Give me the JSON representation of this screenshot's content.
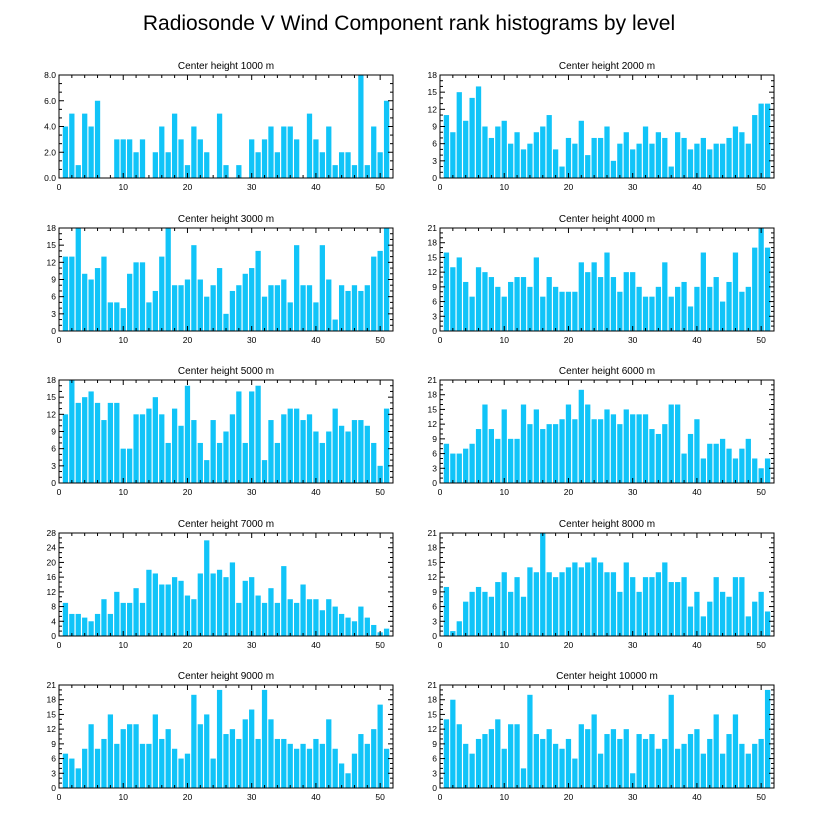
{
  "figure": {
    "title": "Radiosonde V Wind Component rank histograms by level",
    "bar_color": "#11c4f8"
  },
  "chart_data": [
    {
      "type": "bar",
      "title": "Center height 1000 m",
      "ylim": [
        0,
        8
      ],
      "xlim": [
        0,
        52
      ],
      "yticks": [
        0,
        2,
        4,
        6,
        8
      ],
      "ytick_labels": [
        "0.0",
        "2.0",
        "4.0",
        "6.0",
        "8.0"
      ],
      "xticks": [
        0,
        10,
        20,
        30,
        40,
        50
      ],
      "xtick_labels": [
        "0",
        "10",
        "20",
        "30",
        "40",
        "50"
      ],
      "categories": [
        1,
        2,
        3,
        4,
        5,
        6,
        7,
        8,
        9,
        10,
        11,
        12,
        13,
        14,
        15,
        16,
        17,
        18,
        19,
        20,
        21,
        22,
        23,
        24,
        25,
        26,
        27,
        28,
        29,
        30,
        31,
        32,
        33,
        34,
        35,
        36,
        37,
        38,
        39,
        40,
        41,
        42,
        43,
        44,
        45,
        46,
        47,
        48,
        49,
        50,
        51
      ],
      "values": [
        4,
        5,
        1,
        5,
        4,
        6,
        0,
        0,
        3,
        3,
        3,
        2,
        3,
        0,
        2,
        4,
        2,
        5,
        3,
        1,
        4,
        3,
        2,
        0,
        5,
        1,
        0,
        1,
        0,
        3,
        2,
        3,
        4,
        2,
        4,
        4,
        3,
        0,
        5,
        3,
        2,
        4,
        1,
        2,
        2,
        1,
        8,
        1,
        4,
        2,
        6
      ]
    },
    {
      "type": "bar",
      "title": "Center height 2000 m",
      "ylim": [
        0,
        18
      ],
      "xlim": [
        0,
        52
      ],
      "yticks": [
        0,
        3,
        6,
        9,
        12,
        15,
        18
      ],
      "ytick_labels": [
        "0",
        "3",
        "6",
        "9",
        "12",
        "15",
        "18"
      ],
      "xticks": [
        0,
        10,
        20,
        30,
        40,
        50
      ],
      "xtick_labels": [
        "0",
        "10",
        "20",
        "30",
        "40",
        "50"
      ],
      "categories": [
        1,
        2,
        3,
        4,
        5,
        6,
        7,
        8,
        9,
        10,
        11,
        12,
        13,
        14,
        15,
        16,
        17,
        18,
        19,
        20,
        21,
        22,
        23,
        24,
        25,
        26,
        27,
        28,
        29,
        30,
        31,
        32,
        33,
        34,
        35,
        36,
        37,
        38,
        39,
        40,
        41,
        42,
        43,
        44,
        45,
        46,
        47,
        48,
        49,
        50,
        51
      ],
      "values": [
        11,
        8,
        15,
        10,
        14,
        16,
        9,
        7,
        9,
        10,
        6,
        8,
        5,
        6,
        8,
        9,
        11,
        5,
        2,
        7,
        6,
        10,
        4,
        7,
        7,
        9,
        3,
        6,
        8,
        5,
        6,
        9,
        6,
        8,
        7,
        2,
        8,
        7,
        5,
        6,
        7,
        5,
        6,
        6,
        7,
        9,
        8,
        6,
        11,
        13,
        13
      ]
    },
    {
      "type": "bar",
      "title": "Center height 3000 m",
      "ylim": [
        0,
        18
      ],
      "xlim": [
        0,
        52
      ],
      "yticks": [
        0,
        3,
        6,
        9,
        12,
        15,
        18
      ],
      "ytick_labels": [
        "0",
        "3",
        "6",
        "9",
        "12",
        "15",
        "18"
      ],
      "xticks": [
        0,
        10,
        20,
        30,
        40,
        50
      ],
      "xtick_labels": [
        "0",
        "10",
        "20",
        "30",
        "40",
        "50"
      ],
      "categories": [
        1,
        2,
        3,
        4,
        5,
        6,
        7,
        8,
        9,
        10,
        11,
        12,
        13,
        14,
        15,
        16,
        17,
        18,
        19,
        20,
        21,
        22,
        23,
        24,
        25,
        26,
        27,
        28,
        29,
        30,
        31,
        32,
        33,
        34,
        35,
        36,
        37,
        38,
        39,
        40,
        41,
        42,
        43,
        44,
        45,
        46,
        47,
        48,
        49,
        50,
        51
      ],
      "values": [
        13,
        13,
        18,
        10,
        9,
        11,
        13,
        5,
        5,
        4,
        10,
        12,
        12,
        5,
        7,
        13,
        18,
        8,
        8,
        9,
        15,
        9,
        6,
        8,
        11,
        3,
        7,
        8,
        10,
        11,
        14,
        6,
        8,
        8,
        9,
        5,
        15,
        8,
        8,
        5,
        15,
        9,
        2,
        8,
        7,
        8,
        7,
        8,
        13,
        14,
        18
      ]
    },
    {
      "type": "bar",
      "title": "Center height 4000 m",
      "ylim": [
        0,
        21
      ],
      "xlim": [
        0,
        52
      ],
      "yticks": [
        0,
        3,
        6,
        9,
        12,
        15,
        18,
        21
      ],
      "ytick_labels": [
        "0",
        "3",
        "6",
        "9",
        "12",
        "15",
        "18",
        "21"
      ],
      "xticks": [
        0,
        10,
        20,
        30,
        40,
        50
      ],
      "xtick_labels": [
        "0",
        "10",
        "20",
        "30",
        "40",
        "50"
      ],
      "categories": [
        1,
        2,
        3,
        4,
        5,
        6,
        7,
        8,
        9,
        10,
        11,
        12,
        13,
        14,
        15,
        16,
        17,
        18,
        19,
        20,
        21,
        22,
        23,
        24,
        25,
        26,
        27,
        28,
        29,
        30,
        31,
        32,
        33,
        34,
        35,
        36,
        37,
        38,
        39,
        40,
        41,
        42,
        43,
        44,
        45,
        46,
        47,
        48,
        49,
        50,
        51
      ],
      "values": [
        16,
        13,
        15,
        10,
        7,
        13,
        12,
        11,
        9,
        7,
        10,
        11,
        11,
        9,
        15,
        7,
        11,
        9,
        8,
        8,
        8,
        14,
        12,
        14,
        11,
        16,
        11,
        8,
        12,
        12,
        9,
        7,
        7,
        9,
        14,
        7,
        9,
        10,
        5,
        9,
        16,
        9,
        11,
        6,
        10,
        16,
        8,
        9,
        17,
        21,
        17
      ]
    },
    {
      "type": "bar",
      "title": "Center height 5000 m",
      "ylim": [
        0,
        18
      ],
      "xlim": [
        0,
        52
      ],
      "yticks": [
        0,
        3,
        6,
        9,
        12,
        15,
        18
      ],
      "ytick_labels": [
        "0",
        "3",
        "6",
        "9",
        "12",
        "15",
        "18"
      ],
      "xticks": [
        0,
        10,
        20,
        30,
        40,
        50
      ],
      "xtick_labels": [
        "0",
        "10",
        "20",
        "30",
        "40",
        "50"
      ],
      "categories": [
        1,
        2,
        3,
        4,
        5,
        6,
        7,
        8,
        9,
        10,
        11,
        12,
        13,
        14,
        15,
        16,
        17,
        18,
        19,
        20,
        21,
        22,
        23,
        24,
        25,
        26,
        27,
        28,
        29,
        30,
        31,
        32,
        33,
        34,
        35,
        36,
        37,
        38,
        39,
        40,
        41,
        42,
        43,
        44,
        45,
        46,
        47,
        48,
        49,
        50,
        51
      ],
      "values": [
        12,
        18,
        14,
        15,
        16,
        14,
        11,
        14,
        14,
        6,
        6,
        12,
        12,
        13,
        15,
        12,
        7,
        13,
        10,
        17,
        11,
        7,
        4,
        11,
        7,
        9,
        12,
        16,
        7,
        16,
        17,
        4,
        11,
        7,
        12,
        13,
        13,
        11,
        12,
        9,
        7,
        9,
        13,
        10,
        9,
        11,
        11,
        10,
        7,
        3,
        13
      ]
    },
    {
      "type": "bar",
      "title": "Center height 6000 m",
      "ylim": [
        0,
        21
      ],
      "xlim": [
        0,
        52
      ],
      "yticks": [
        0,
        3,
        6,
        9,
        12,
        15,
        18,
        21
      ],
      "ytick_labels": [
        "0",
        "3",
        "6",
        "9",
        "12",
        "15",
        "18",
        "21"
      ],
      "xticks": [
        0,
        10,
        20,
        30,
        40,
        50
      ],
      "xtick_labels": [
        "0",
        "10",
        "20",
        "30",
        "40",
        "50"
      ],
      "categories": [
        1,
        2,
        3,
        4,
        5,
        6,
        7,
        8,
        9,
        10,
        11,
        12,
        13,
        14,
        15,
        16,
        17,
        18,
        19,
        20,
        21,
        22,
        23,
        24,
        25,
        26,
        27,
        28,
        29,
        30,
        31,
        32,
        33,
        34,
        35,
        36,
        37,
        38,
        39,
        40,
        41,
        42,
        43,
        44,
        45,
        46,
        47,
        48,
        49,
        50,
        51
      ],
      "values": [
        8,
        6,
        6,
        7,
        8,
        11,
        16,
        11,
        9,
        15,
        9,
        9,
        16,
        12,
        15,
        11,
        12,
        12,
        13,
        16,
        13,
        19,
        16,
        13,
        13,
        15,
        14,
        12,
        15,
        14,
        14,
        14,
        11,
        10,
        12,
        16,
        16,
        6,
        10,
        13,
        5,
        8,
        8,
        9,
        7,
        5,
        7,
        9,
        5,
        3,
        5
      ]
    },
    {
      "type": "bar",
      "title": "Center height 7000 m",
      "ylim": [
        0,
        28
      ],
      "xlim": [
        0,
        52
      ],
      "yticks": [
        0,
        4,
        8,
        12,
        16,
        20,
        24,
        28
      ],
      "ytick_labels": [
        "0",
        "4",
        "8",
        "12",
        "16",
        "20",
        "24",
        "28"
      ],
      "xticks": [
        0,
        10,
        20,
        30,
        40,
        50
      ],
      "xtick_labels": [
        "0",
        "10",
        "20",
        "30",
        "40",
        "50"
      ],
      "categories": [
        1,
        2,
        3,
        4,
        5,
        6,
        7,
        8,
        9,
        10,
        11,
        12,
        13,
        14,
        15,
        16,
        17,
        18,
        19,
        20,
        21,
        22,
        23,
        24,
        25,
        26,
        27,
        28,
        29,
        30,
        31,
        32,
        33,
        34,
        35,
        36,
        37,
        38,
        39,
        40,
        41,
        42,
        43,
        44,
        45,
        46,
        47,
        48,
        49,
        50,
        51
      ],
      "values": [
        9,
        6,
        6,
        5,
        4,
        6,
        10,
        6,
        12,
        9,
        9,
        13,
        9,
        18,
        17,
        14,
        14,
        16,
        15,
        11,
        10,
        17,
        26,
        17,
        18,
        16,
        20,
        9,
        15,
        16,
        11,
        9,
        13,
        9,
        19,
        10,
        9,
        14,
        10,
        10,
        7,
        10,
        8,
        6,
        5,
        4,
        8,
        5,
        3,
        1,
        2
      ]
    },
    {
      "type": "bar",
      "title": "Center height 8000 m",
      "ylim": [
        0,
        21
      ],
      "xlim": [
        0,
        52
      ],
      "yticks": [
        0,
        3,
        6,
        9,
        12,
        15,
        18,
        21
      ],
      "ytick_labels": [
        "0",
        "3",
        "6",
        "9",
        "12",
        "15",
        "18",
        "21"
      ],
      "xticks": [
        0,
        10,
        20,
        30,
        40,
        50
      ],
      "xtick_labels": [
        "0",
        "10",
        "20",
        "30",
        "40",
        "50"
      ],
      "categories": [
        1,
        2,
        3,
        4,
        5,
        6,
        7,
        8,
        9,
        10,
        11,
        12,
        13,
        14,
        15,
        16,
        17,
        18,
        19,
        20,
        21,
        22,
        23,
        24,
        25,
        26,
        27,
        28,
        29,
        30,
        31,
        32,
        33,
        34,
        35,
        36,
        37,
        38,
        39,
        40,
        41,
        42,
        43,
        44,
        45,
        46,
        47,
        48,
        49,
        50,
        51
      ],
      "values": [
        10,
        1,
        3,
        7,
        9,
        10,
        9,
        8,
        11,
        13,
        9,
        12,
        8,
        14,
        13,
        21,
        13,
        12,
        13,
        14,
        15,
        14,
        15,
        16,
        15,
        13,
        13,
        9,
        15,
        12,
        9,
        12,
        12,
        13,
        15,
        11,
        11,
        12,
        6,
        9,
        4,
        7,
        12,
        9,
        8,
        12,
        12,
        4,
        7,
        9,
        5
      ]
    },
    {
      "type": "bar",
      "title": "Center height 9000 m",
      "ylim": [
        0,
        21
      ],
      "xlim": [
        0,
        52
      ],
      "yticks": [
        0,
        3,
        6,
        9,
        12,
        15,
        18,
        21
      ],
      "ytick_labels": [
        "0",
        "3",
        "6",
        "9",
        "12",
        "15",
        "18",
        "21"
      ],
      "xticks": [
        0,
        10,
        20,
        30,
        40,
        50
      ],
      "xtick_labels": [
        "0",
        "10",
        "20",
        "30",
        "40",
        "50"
      ],
      "categories": [
        1,
        2,
        3,
        4,
        5,
        6,
        7,
        8,
        9,
        10,
        11,
        12,
        13,
        14,
        15,
        16,
        17,
        18,
        19,
        20,
        21,
        22,
        23,
        24,
        25,
        26,
        27,
        28,
        29,
        30,
        31,
        32,
        33,
        34,
        35,
        36,
        37,
        38,
        39,
        40,
        41,
        42,
        43,
        44,
        45,
        46,
        47,
        48,
        49,
        50,
        51
      ],
      "values": [
        7,
        6,
        4,
        8,
        13,
        8,
        10,
        15,
        9,
        12,
        13,
        13,
        9,
        9,
        15,
        10,
        12,
        8,
        6,
        7,
        19,
        13,
        15,
        6,
        20,
        11,
        12,
        10,
        14,
        16,
        10,
        20,
        14,
        10,
        10,
        9,
        8,
        9,
        8,
        10,
        9,
        14,
        8,
        5,
        3,
        7,
        11,
        9,
        12,
        17,
        8
      ]
    },
    {
      "type": "bar",
      "title": "Center height 10000 m",
      "ylim": [
        0,
        21
      ],
      "xlim": [
        0,
        52
      ],
      "yticks": [
        0,
        3,
        6,
        9,
        12,
        15,
        18,
        21
      ],
      "ytick_labels": [
        "0",
        "3",
        "6",
        "9",
        "12",
        "15",
        "18",
        "21"
      ],
      "xticks": [
        0,
        10,
        20,
        30,
        40,
        50
      ],
      "xtick_labels": [
        "0",
        "10",
        "20",
        "30",
        "40",
        "50"
      ],
      "categories": [
        1,
        2,
        3,
        4,
        5,
        6,
        7,
        8,
        9,
        10,
        11,
        12,
        13,
        14,
        15,
        16,
        17,
        18,
        19,
        20,
        21,
        22,
        23,
        24,
        25,
        26,
        27,
        28,
        29,
        30,
        31,
        32,
        33,
        34,
        35,
        36,
        37,
        38,
        39,
        40,
        41,
        42,
        43,
        44,
        45,
        46,
        47,
        48,
        49,
        50,
        51
      ],
      "values": [
        14,
        18,
        13,
        9,
        7,
        10,
        11,
        12,
        14,
        8,
        13,
        13,
        4,
        19,
        11,
        10,
        12,
        9,
        8,
        10,
        6,
        13,
        12,
        15,
        7,
        11,
        12,
        10,
        12,
        3,
        11,
        10,
        11,
        8,
        10,
        19,
        8,
        9,
        11,
        12,
        7,
        10,
        15,
        7,
        11,
        15,
        9,
        7,
        9,
        10,
        20
      ]
    }
  ]
}
